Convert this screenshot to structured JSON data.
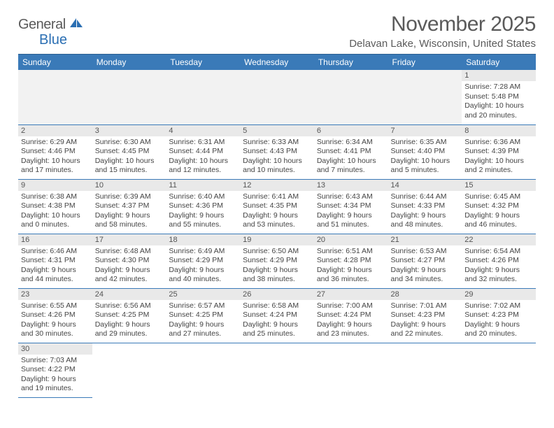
{
  "logo": {
    "text1": "General",
    "text2": "Blue"
  },
  "title": "November 2025",
  "location": "Delavan Lake, Wisconsin, United States",
  "header_bg": "#3a7ab8",
  "dayname_bg": "#e9e9e9",
  "border_color": "#3a7ab8",
  "days_of_week": [
    "Sunday",
    "Monday",
    "Tuesday",
    "Wednesday",
    "Thursday",
    "Friday",
    "Saturday"
  ],
  "cells": [
    {
      "n": "",
      "sr": "",
      "ss": "",
      "dl": ""
    },
    {
      "n": "",
      "sr": "",
      "ss": "",
      "dl": ""
    },
    {
      "n": "",
      "sr": "",
      "ss": "",
      "dl": ""
    },
    {
      "n": "",
      "sr": "",
      "ss": "",
      "dl": ""
    },
    {
      "n": "",
      "sr": "",
      "ss": "",
      "dl": ""
    },
    {
      "n": "",
      "sr": "",
      "ss": "",
      "dl": ""
    },
    {
      "n": "1",
      "sr": "Sunrise: 7:28 AM",
      "ss": "Sunset: 5:48 PM",
      "dl": "Daylight: 10 hours and 20 minutes."
    },
    {
      "n": "2",
      "sr": "Sunrise: 6:29 AM",
      "ss": "Sunset: 4:46 PM",
      "dl": "Daylight: 10 hours and 17 minutes."
    },
    {
      "n": "3",
      "sr": "Sunrise: 6:30 AM",
      "ss": "Sunset: 4:45 PM",
      "dl": "Daylight: 10 hours and 15 minutes."
    },
    {
      "n": "4",
      "sr": "Sunrise: 6:31 AM",
      "ss": "Sunset: 4:44 PM",
      "dl": "Daylight: 10 hours and 12 minutes."
    },
    {
      "n": "5",
      "sr": "Sunrise: 6:33 AM",
      "ss": "Sunset: 4:43 PM",
      "dl": "Daylight: 10 hours and 10 minutes."
    },
    {
      "n": "6",
      "sr": "Sunrise: 6:34 AM",
      "ss": "Sunset: 4:41 PM",
      "dl": "Daylight: 10 hours and 7 minutes."
    },
    {
      "n": "7",
      "sr": "Sunrise: 6:35 AM",
      "ss": "Sunset: 4:40 PM",
      "dl": "Daylight: 10 hours and 5 minutes."
    },
    {
      "n": "8",
      "sr": "Sunrise: 6:36 AM",
      "ss": "Sunset: 4:39 PM",
      "dl": "Daylight: 10 hours and 2 minutes."
    },
    {
      "n": "9",
      "sr": "Sunrise: 6:38 AM",
      "ss": "Sunset: 4:38 PM",
      "dl": "Daylight: 10 hours and 0 minutes."
    },
    {
      "n": "10",
      "sr": "Sunrise: 6:39 AM",
      "ss": "Sunset: 4:37 PM",
      "dl": "Daylight: 9 hours and 58 minutes."
    },
    {
      "n": "11",
      "sr": "Sunrise: 6:40 AM",
      "ss": "Sunset: 4:36 PM",
      "dl": "Daylight: 9 hours and 55 minutes."
    },
    {
      "n": "12",
      "sr": "Sunrise: 6:41 AM",
      "ss": "Sunset: 4:35 PM",
      "dl": "Daylight: 9 hours and 53 minutes."
    },
    {
      "n": "13",
      "sr": "Sunrise: 6:43 AM",
      "ss": "Sunset: 4:34 PM",
      "dl": "Daylight: 9 hours and 51 minutes."
    },
    {
      "n": "14",
      "sr": "Sunrise: 6:44 AM",
      "ss": "Sunset: 4:33 PM",
      "dl": "Daylight: 9 hours and 48 minutes."
    },
    {
      "n": "15",
      "sr": "Sunrise: 6:45 AM",
      "ss": "Sunset: 4:32 PM",
      "dl": "Daylight: 9 hours and 46 minutes."
    },
    {
      "n": "16",
      "sr": "Sunrise: 6:46 AM",
      "ss": "Sunset: 4:31 PM",
      "dl": "Daylight: 9 hours and 44 minutes."
    },
    {
      "n": "17",
      "sr": "Sunrise: 6:48 AM",
      "ss": "Sunset: 4:30 PM",
      "dl": "Daylight: 9 hours and 42 minutes."
    },
    {
      "n": "18",
      "sr": "Sunrise: 6:49 AM",
      "ss": "Sunset: 4:29 PM",
      "dl": "Daylight: 9 hours and 40 minutes."
    },
    {
      "n": "19",
      "sr": "Sunrise: 6:50 AM",
      "ss": "Sunset: 4:29 PM",
      "dl": "Daylight: 9 hours and 38 minutes."
    },
    {
      "n": "20",
      "sr": "Sunrise: 6:51 AM",
      "ss": "Sunset: 4:28 PM",
      "dl": "Daylight: 9 hours and 36 minutes."
    },
    {
      "n": "21",
      "sr": "Sunrise: 6:53 AM",
      "ss": "Sunset: 4:27 PM",
      "dl": "Daylight: 9 hours and 34 minutes."
    },
    {
      "n": "22",
      "sr": "Sunrise: 6:54 AM",
      "ss": "Sunset: 4:26 PM",
      "dl": "Daylight: 9 hours and 32 minutes."
    },
    {
      "n": "23",
      "sr": "Sunrise: 6:55 AM",
      "ss": "Sunset: 4:26 PM",
      "dl": "Daylight: 9 hours and 30 minutes."
    },
    {
      "n": "24",
      "sr": "Sunrise: 6:56 AM",
      "ss": "Sunset: 4:25 PM",
      "dl": "Daylight: 9 hours and 29 minutes."
    },
    {
      "n": "25",
      "sr": "Sunrise: 6:57 AM",
      "ss": "Sunset: 4:25 PM",
      "dl": "Daylight: 9 hours and 27 minutes."
    },
    {
      "n": "26",
      "sr": "Sunrise: 6:58 AM",
      "ss": "Sunset: 4:24 PM",
      "dl": "Daylight: 9 hours and 25 minutes."
    },
    {
      "n": "27",
      "sr": "Sunrise: 7:00 AM",
      "ss": "Sunset: 4:24 PM",
      "dl": "Daylight: 9 hours and 23 minutes."
    },
    {
      "n": "28",
      "sr": "Sunrise: 7:01 AM",
      "ss": "Sunset: 4:23 PM",
      "dl": "Daylight: 9 hours and 22 minutes."
    },
    {
      "n": "29",
      "sr": "Sunrise: 7:02 AM",
      "ss": "Sunset: 4:23 PM",
      "dl": "Daylight: 9 hours and 20 minutes."
    },
    {
      "n": "30",
      "sr": "Sunrise: 7:03 AM",
      "ss": "Sunset: 4:22 PM",
      "dl": "Daylight: 9 hours and 19 minutes."
    },
    {
      "n": "",
      "sr": "",
      "ss": "",
      "dl": ""
    },
    {
      "n": "",
      "sr": "",
      "ss": "",
      "dl": ""
    },
    {
      "n": "",
      "sr": "",
      "ss": "",
      "dl": ""
    },
    {
      "n": "",
      "sr": "",
      "ss": "",
      "dl": ""
    },
    {
      "n": "",
      "sr": "",
      "ss": "",
      "dl": ""
    },
    {
      "n": "",
      "sr": "",
      "ss": "",
      "dl": ""
    }
  ]
}
